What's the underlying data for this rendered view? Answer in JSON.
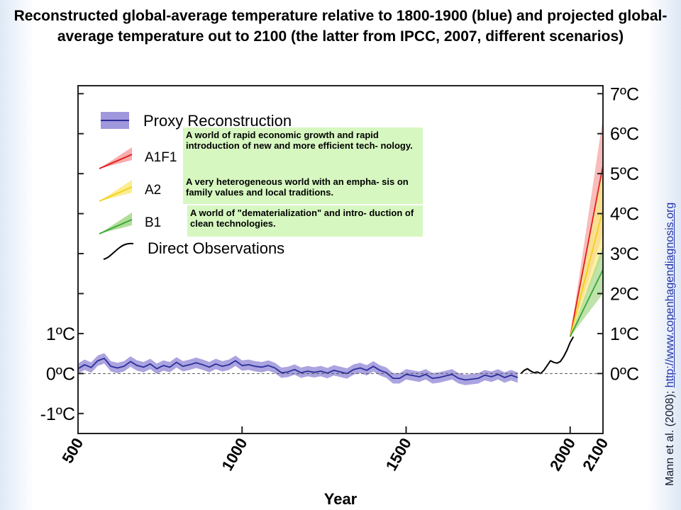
{
  "title": "Reconstructed global-average temperature relative to 1800-1900 (blue) and projected global-average temperature out to 2100 (the latter from IPCC, 2007, different scenarios)",
  "credit": {
    "text": "Mann et al. (2008); ",
    "link_text": "http://www.copenhagendiagnosis.org"
  },
  "colors": {
    "proxy": "#2b2f9a",
    "proxy_band": "#8f86d6",
    "a1f1": "#e31a1c",
    "a1f1_band": "#f6a5a3",
    "a2": "#f2d21b",
    "a2_band": "#fbeb86",
    "b1": "#39a83a",
    "b1_band": "#a9d98e",
    "observations": "#000000",
    "scenario_box": "#d6f7c0"
  },
  "chart_data": {
    "type": "line",
    "title": "Reconstructed global-average temperature relative to 1800-1900 (blue) and projected global-average temperature out to 2100 (the latter from IPCC, 2007, different scenarios)",
    "xlabel": "Year",
    "ylabel": "",
    "xlim": [
      500,
      2100
    ],
    "ylim": [
      -1.5,
      7.2
    ],
    "x_ticks": [
      500,
      1000,
      1500,
      2000,
      2100
    ],
    "x_tick_labels": [
      "500",
      "1000",
      "1500",
      "2000",
      "2100"
    ],
    "y_left_ticks": [
      1,
      0,
      -1
    ],
    "y_left_labels": [
      "1ºC",
      "0ºC",
      "-1ºC"
    ],
    "y_right_ticks": [
      7,
      6,
      5,
      4,
      3,
      2,
      1,
      0
    ],
    "y_right_labels": [
      "7ºC",
      "6ºC",
      "5ºC",
      "4ºC",
      "3ºC",
      "2ºC",
      "1ºC",
      "0ºC"
    ],
    "reference_line": {
      "y": 0,
      "style": "dashed"
    },
    "legend": {
      "placement": "top-left",
      "entries": [
        {
          "key": "proxy",
          "label": "Proxy Reconstruction"
        },
        {
          "key": "a1f1",
          "label": "A1F1",
          "description": "A world of rapid economic growth and rapid introduction of new and more efficient tech- nology."
        },
        {
          "key": "a2",
          "label": "A2",
          "description": "A very heterogeneous world with an empha- sis on family values and local traditions."
        },
        {
          "key": "b1",
          "label": "B1",
          "description": "A world of \"dematerialization\" and intro- duction of clean technologies."
        },
        {
          "key": "observations",
          "label": "Direct Observations"
        }
      ]
    },
    "series": [
      {
        "name": "Proxy Reconstruction",
        "key": "proxy",
        "band_halfwidth": 0.13,
        "x": [
          500,
          520,
          540,
          560,
          580,
          600,
          620,
          640,
          660,
          680,
          700,
          720,
          740,
          760,
          780,
          800,
          820,
          840,
          860,
          880,
          900,
          920,
          940,
          960,
          980,
          1000,
          1020,
          1040,
          1060,
          1080,
          1100,
          1120,
          1140,
          1160,
          1180,
          1200,
          1220,
          1240,
          1260,
          1280,
          1300,
          1320,
          1340,
          1360,
          1380,
          1400,
          1420,
          1440,
          1460,
          1480,
          1500,
          1520,
          1540,
          1560,
          1580,
          1600,
          1620,
          1640,
          1660,
          1680,
          1700,
          1720,
          1740,
          1760,
          1780,
          1800,
          1820,
          1840
        ],
        "y": [
          0.12,
          0.22,
          0.15,
          0.32,
          0.38,
          0.18,
          0.14,
          0.18,
          0.3,
          0.2,
          0.16,
          0.24,
          0.12,
          0.2,
          0.16,
          0.28,
          0.18,
          0.22,
          0.27,
          0.22,
          0.16,
          0.24,
          0.18,
          0.22,
          0.32,
          0.2,
          0.22,
          0.18,
          0.16,
          0.2,
          0.14,
          0.02,
          0.04,
          0.1,
          0.02,
          0.06,
          0.03,
          0.06,
          0.01,
          0.08,
          0.04,
          0.0,
          0.1,
          0.14,
          0.08,
          0.18,
          0.08,
          0.02,
          -0.12,
          -0.12,
          -0.02,
          -0.05,
          -0.08,
          -0.02,
          -0.12,
          -0.1,
          -0.06,
          -0.02,
          -0.12,
          -0.16,
          -0.14,
          -0.12,
          -0.04,
          -0.08,
          -0.02,
          -0.1,
          -0.04,
          -0.1
        ]
      },
      {
        "name": "Direct Observations",
        "key": "observations",
        "x": [
          1850,
          1860,
          1870,
          1880,
          1890,
          1900,
          1910,
          1920,
          1930,
          1940,
          1950,
          1960,
          1970,
          1980,
          1990,
          2000,
          2010
        ],
        "y": [
          0.0,
          0.08,
          0.12,
          0.06,
          0.02,
          0.04,
          0.0,
          0.08,
          0.2,
          0.32,
          0.28,
          0.26,
          0.3,
          0.42,
          0.58,
          0.78,
          0.92
        ]
      },
      {
        "name": "A1F1",
        "key": "a1f1",
        "x": [
          2000,
          2100
        ],
        "y": [
          0.92,
          5.2
        ],
        "band_lower": [
          0.92,
          3.5
        ],
        "band_upper": [
          0.92,
          6.4
        ]
      },
      {
        "name": "A2",
        "key": "a2",
        "x": [
          2000,
          2100
        ],
        "y": [
          0.92,
          4.1
        ],
        "band_lower": [
          0.92,
          3.0
        ],
        "band_upper": [
          0.92,
          5.2
        ]
      },
      {
        "name": "B1",
        "key": "b1",
        "x": [
          2000,
          2100
        ],
        "y": [
          0.92,
          2.6
        ],
        "band_lower": [
          0.92,
          2.0
        ],
        "band_upper": [
          0.92,
          3.2
        ]
      }
    ]
  }
}
